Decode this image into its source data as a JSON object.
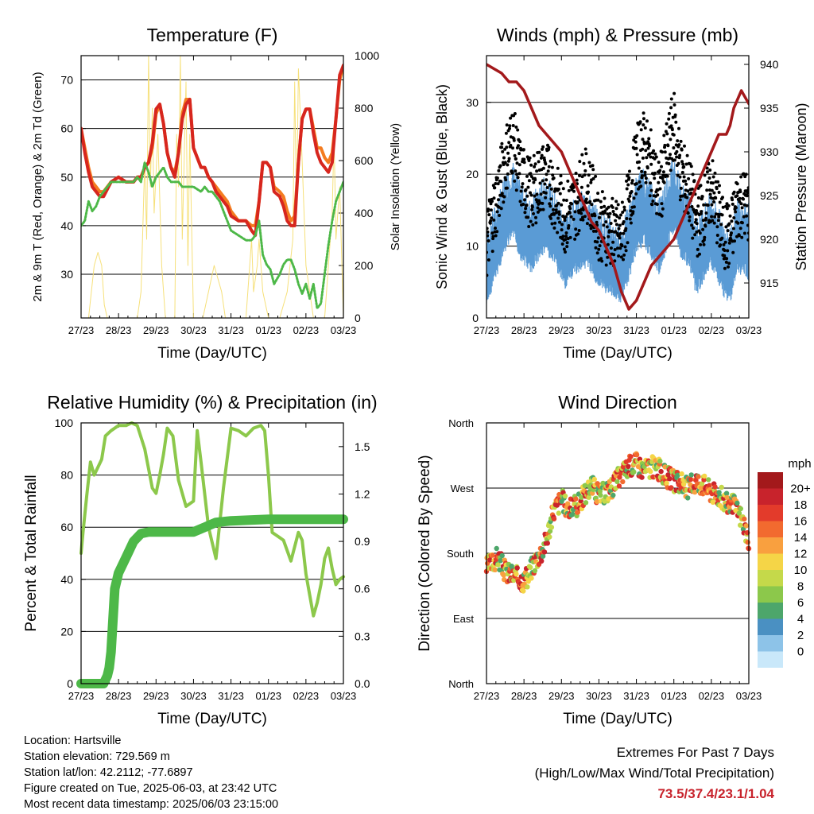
{
  "colors": {
    "red": "#d7261e",
    "orange": "#f47c20",
    "green": "#4db848",
    "yellow": "#f6e07a",
    "blue": "#5a9bd5",
    "black": "#000000",
    "maroon": "#a3191b",
    "rh": "#8cc84b",
    "precip": "#4db848"
  },
  "info": {
    "location": "Location: Hartsville",
    "elevation": "Station elevation: 729.569 m",
    "latlon": "Station lat/lon: 42.2112; -77.6897",
    "created": "Figure created on Tue, 2025-06-03, at 23:42 UTC",
    "recent": "Most recent data timestamp: 2025/06/03 23:15:00"
  },
  "extremes": {
    "title": "Extremes For Past 7 Days",
    "subtitle": "(High/Low/Max Wind/Total Precipitation)",
    "values": "73.5/37.4/23.1/1.04"
  },
  "chart_data": [
    {
      "id": "temp",
      "type": "line",
      "title": "Temperature (F)",
      "xlabel": "Time (Day/UTC)",
      "ylabel": "2m & 9m T (Red, Orange) & 2m Td (Green)",
      "ylabel_right": "Solar Insolation (Yellow)",
      "x_ticks": [
        "27/23",
        "28/23",
        "29/23",
        "30/23",
        "31/23",
        "01/23",
        "02/23",
        "03/23"
      ],
      "xlim": [
        0,
        7
      ],
      "ylim": [
        21,
        75
      ],
      "y_ticks": [
        30,
        40,
        50,
        60,
        70
      ],
      "ylim_right": [
        0,
        1000
      ],
      "y_ticks_right": [
        0,
        200,
        400,
        600,
        800,
        1000
      ],
      "grid": "horizontal",
      "series": [
        {
          "color": "yellow",
          "axis": "right",
          "width": 1,
          "x": [
            0.0,
            0.2,
            0.35,
            0.45,
            0.55,
            0.62,
            0.7,
            0.9,
            1.5,
            1.6,
            1.7,
            1.75,
            1.8,
            1.85,
            1.9,
            1.95,
            2.05,
            2.15,
            2.25,
            2.5,
            2.55,
            2.6,
            2.65,
            2.7,
            2.8,
            2.85,
            2.9,
            3.0,
            3.1,
            3.25,
            3.4,
            3.55,
            3.65,
            3.75,
            3.85,
            3.95,
            4.1,
            4.4,
            4.55,
            4.6,
            4.7,
            4.75,
            4.85,
            5.0,
            5.3,
            5.5,
            5.65,
            5.7,
            5.75,
            5.8,
            5.9,
            6.0,
            6.2,
            6.5,
            6.7,
            6.75,
            6.8,
            6.9,
            7.0
          ],
          "y": [
            0,
            0,
            200,
            250,
            200,
            50,
            0,
            0,
            0,
            100,
            600,
            300,
            1000,
            500,
            800,
            400,
            700,
            200,
            0,
            0,
            700,
            500,
            1000,
            300,
            900,
            200,
            700,
            0,
            0,
            0,
            100,
            200,
            150,
            100,
            0,
            0,
            0,
            0,
            300,
            100,
            200,
            300,
            100,
            0,
            0,
            100,
            300,
            900,
            400,
            950,
            600,
            200,
            0,
            0,
            400,
            700,
            300,
            500,
            0
          ]
        },
        {
          "color": "orange",
          "axis": "left",
          "width": 4,
          "x": [
            0.0,
            0.1,
            0.2,
            0.3,
            0.4,
            0.5,
            0.6,
            0.8,
            1.0,
            1.2,
            1.4,
            1.5,
            1.6,
            1.7,
            1.8,
            1.9,
            2.0,
            2.1,
            2.2,
            2.3,
            2.4,
            2.5,
            2.6,
            2.7,
            2.8,
            2.9,
            3.0,
            3.2,
            3.3,
            3.4,
            3.5,
            3.6,
            3.7,
            3.8,
            3.9,
            4.0,
            4.2,
            4.4,
            4.55,
            4.65,
            4.75,
            4.85,
            4.95,
            5.05,
            5.15,
            5.3,
            5.4,
            5.5,
            5.6,
            5.7,
            5.8,
            5.9,
            6.0,
            6.1,
            6.2,
            6.3,
            6.4,
            6.5,
            6.6,
            6.7,
            6.8,
            6.9,
            7.0
          ],
          "y": [
            60,
            56,
            52,
            49,
            48,
            47,
            47,
            49,
            50,
            49,
            49,
            50,
            50,
            52,
            53,
            56,
            63,
            65,
            61,
            55,
            52,
            51,
            55,
            63,
            66,
            66,
            56,
            52,
            52,
            50,
            49,
            48,
            47,
            46,
            45,
            43,
            41,
            41,
            40,
            40,
            45,
            53,
            53,
            52,
            48,
            47,
            46,
            43,
            41,
            42,
            53,
            62,
            64,
            64,
            60,
            56,
            56,
            54,
            53,
            55,
            62,
            70,
            73
          ]
        },
        {
          "color": "red",
          "axis": "left",
          "width": 4,
          "x": [
            0.0,
            0.1,
            0.2,
            0.3,
            0.4,
            0.5,
            0.6,
            0.8,
            1.0,
            1.2,
            1.4,
            1.5,
            1.6,
            1.7,
            1.8,
            1.9,
            2.0,
            2.1,
            2.2,
            2.3,
            2.4,
            2.5,
            2.6,
            2.7,
            2.8,
            2.9,
            3.0,
            3.2,
            3.3,
            3.4,
            3.5,
            3.6,
            3.7,
            3.8,
            3.9,
            4.0,
            4.2,
            4.4,
            4.55,
            4.65,
            4.75,
            4.85,
            4.95,
            5.05,
            5.15,
            5.3,
            5.4,
            5.5,
            5.6,
            5.7,
            5.8,
            5.9,
            6.0,
            6.1,
            6.2,
            6.3,
            6.4,
            6.5,
            6.6,
            6.7,
            6.8,
            6.9,
            7.0
          ],
          "y": [
            60,
            55,
            51,
            48,
            47,
            46,
            46,
            49,
            50,
            49,
            49,
            50,
            50,
            52,
            53,
            57,
            64,
            65,
            61,
            55,
            52,
            50,
            55,
            62,
            65,
            66,
            56,
            52,
            52,
            50,
            49,
            47,
            46,
            45,
            44,
            42,
            41,
            41,
            39,
            38,
            45,
            53,
            53,
            52,
            47,
            46,
            44,
            41,
            40,
            40,
            53,
            62,
            64,
            64,
            59,
            55,
            53,
            52,
            51,
            53,
            62,
            71,
            73
          ]
        },
        {
          "color": "green",
          "axis": "left",
          "width": 3,
          "dotted": true,
          "x": [
            0.0,
            0.1,
            0.2,
            0.3,
            0.4,
            0.5,
            0.6,
            0.8,
            1.0,
            1.2,
            1.4,
            1.5,
            1.6,
            1.7,
            1.8,
            1.9,
            2.0,
            2.1,
            2.2,
            2.3,
            2.4,
            2.5,
            2.6,
            2.7,
            2.8,
            2.9,
            3.0,
            3.2,
            3.3,
            3.4,
            3.5,
            3.6,
            3.7,
            3.8,
            3.9,
            4.0,
            4.2,
            4.4,
            4.55,
            4.65,
            4.75,
            4.85,
            4.95,
            5.05,
            5.15,
            5.3,
            5.4,
            5.5,
            5.6,
            5.7,
            5.8,
            5.9,
            6.0,
            6.1,
            6.2,
            6.3,
            6.4,
            6.5,
            6.6,
            6.7,
            6.8,
            6.9,
            7.0
          ],
          "y": [
            40,
            41,
            45,
            43,
            44,
            46,
            47,
            49,
            49,
            49,
            49,
            50,
            49,
            53,
            51,
            48,
            50,
            51,
            52,
            50,
            49,
            49,
            49,
            48,
            48,
            48,
            48,
            47,
            48,
            47,
            47,
            46,
            45,
            43,
            41,
            39,
            38,
            37,
            37,
            38,
            41,
            34,
            32,
            31,
            28,
            30,
            32,
            33,
            33,
            31,
            28,
            26,
            28,
            25,
            28,
            23,
            24,
            30,
            36,
            41,
            45,
            47,
            49
          ]
        }
      ]
    },
    {
      "id": "wind",
      "type": "scatter",
      "title": "Winds (mph) & Pressure (mb)",
      "xlabel": "Time (Day/UTC)",
      "ylabel": "Sonic Wind & Gust (Blue, Black)",
      "ylabel_right": "Station Pressure (Maroon)",
      "x_ticks": [
        "27/23",
        "28/23",
        "29/23",
        "30/23",
        "31/23",
        "01/23",
        "02/23",
        "03/23"
      ],
      "xlim": [
        0,
        7
      ],
      "ylim": [
        0,
        36.5
      ],
      "y_ticks": [
        0,
        10,
        20,
        30
      ],
      "ylim_right": [
        911,
        941
      ],
      "y_ticks_right": [
        915,
        920,
        925,
        930,
        935,
        940
      ],
      "grid": "horizontal",
      "wind_mean_x": [
        0.0,
        0.1,
        0.3,
        0.5,
        0.7,
        0.9,
        1.2,
        1.4,
        1.6,
        1.9,
        2.1,
        2.4,
        2.6,
        2.8,
        3.0,
        3.3,
        3.6,
        3.8,
        4.0,
        4.2,
        4.4,
        4.6,
        4.8,
        5.0,
        5.2,
        5.4,
        5.6,
        5.8,
        6.0,
        6.3,
        6.5,
        6.7,
        6.9,
        7.0
      ],
      "wind_mean_y": [
        6,
        8,
        11,
        14,
        16,
        13,
        11,
        13,
        14,
        11,
        9,
        11,
        12,
        11,
        9,
        8,
        7,
        10,
        14,
        15,
        13,
        11,
        14,
        17,
        13,
        12,
        8,
        10,
        12,
        8,
        7,
        11,
        11,
        10
      ],
      "gust_mean_y": [
        10,
        13,
        17,
        22,
        25,
        20,
        17,
        19,
        20,
        16,
        14,
        16,
        19,
        17,
        13,
        12,
        11,
        16,
        22,
        24,
        21,
        17,
        22,
        27,
        20,
        18,
        13,
        15,
        18,
        12,
        11,
        16,
        16,
        15
      ],
      "pressure_x": [
        0.0,
        0.2,
        0.4,
        0.6,
        0.8,
        1.0,
        1.2,
        1.4,
        1.6,
        1.8,
        2.0,
        2.2,
        2.4,
        2.6,
        2.8,
        3.0,
        3.2,
        3.4,
        3.6,
        3.8,
        4.0,
        4.2,
        4.4,
        4.6,
        4.8,
        5.0,
        5.2,
        5.4,
        5.6,
        5.8,
        6.0,
        6.2,
        6.4,
        6.5,
        6.6,
        6.8,
        7.0
      ],
      "pressure_y": [
        940,
        939.5,
        939,
        938,
        938,
        937,
        935,
        933,
        932,
        931,
        930,
        928,
        926,
        924,
        922,
        921,
        919,
        917,
        914,
        912,
        913,
        915,
        917,
        918,
        919,
        920,
        922,
        924,
        926,
        928,
        930,
        932,
        932,
        933,
        935,
        937,
        935.5
      ]
    },
    {
      "id": "rh",
      "type": "line",
      "title": "Relative Humidity (%) & Precipitation (in)",
      "xlabel": "Time (Day/UTC)",
      "ylabel": "Percent & Total Rainfall",
      "x_ticks": [
        "27/23",
        "28/23",
        "29/23",
        "30/23",
        "31/23",
        "01/23",
        "02/23",
        "03/23"
      ],
      "xlim": [
        0,
        7
      ],
      "ylim": [
        0,
        100
      ],
      "y_ticks": [
        0,
        20,
        40,
        60,
        80,
        100
      ],
      "ylim_right": [
        0,
        1.65
      ],
      "y_ticks_right": [
        0.0,
        0.3,
        0.6,
        0.9,
        1.2,
        1.5
      ],
      "grid": "horizontal",
      "series": [
        {
          "name_color": "rh",
          "axis": "left",
          "width": 4,
          "x": [
            0.0,
            0.05,
            0.15,
            0.25,
            0.35,
            0.45,
            0.55,
            0.65,
            0.8,
            1.0,
            1.2,
            1.35,
            1.5,
            1.7,
            1.9,
            2.0,
            2.1,
            2.2,
            2.3,
            2.45,
            2.6,
            2.8,
            3.0,
            3.1,
            3.2,
            3.4,
            3.6,
            3.8,
            4.0,
            4.2,
            4.4,
            4.6,
            4.8,
            4.9,
            5.0,
            5.1,
            5.2,
            5.3,
            5.4,
            5.6,
            5.8,
            5.9,
            6.0,
            6.1,
            6.2,
            6.3,
            6.4,
            6.5,
            6.6,
            6.7,
            6.8,
            6.9,
            7.0
          ],
          "y": [
            50,
            58,
            72,
            85,
            80,
            83,
            86,
            95,
            97,
            99,
            99,
            100,
            99,
            90,
            75,
            73,
            80,
            88,
            98,
            95,
            78,
            68,
            70,
            97,
            85,
            60,
            48,
            75,
            98,
            97,
            95,
            98,
            99,
            97,
            80,
            58,
            57,
            56,
            55,
            47,
            58,
            55,
            42,
            34,
            26,
            31,
            38,
            48,
            52,
            44,
            38,
            40,
            41
          ]
        },
        {
          "name_color": "precip",
          "axis": "right",
          "width": 12,
          "x": [
            0.0,
            0.4,
            0.6,
            0.7,
            0.75,
            0.8,
            0.9,
            1.0,
            1.2,
            1.4,
            1.6,
            1.8,
            2.0,
            2.5,
            3.0,
            3.2,
            3.4,
            3.6,
            4.0,
            5.0,
            6.0,
            7.0
          ],
          "y": [
            0.0,
            0.0,
            0.0,
            0.05,
            0.1,
            0.2,
            0.6,
            0.7,
            0.8,
            0.9,
            0.95,
            0.96,
            0.96,
            0.96,
            0.96,
            0.98,
            1.0,
            1.02,
            1.03,
            1.04,
            1.04,
            1.04
          ]
        }
      ]
    },
    {
      "id": "wdir",
      "type": "scatter",
      "title": "Wind Direction",
      "xlabel": "Time (Day/UTC)",
      "ylabel": "Direction (Colored By Speed)",
      "x_ticks": [
        "27/23",
        "28/23",
        "29/23",
        "30/23",
        "31/23",
        "01/23",
        "02/23",
        "03/23"
      ],
      "y_ticks": [
        "North",
        "East",
        "South",
        "West",
        "North"
      ],
      "ylim": [
        0,
        360
      ],
      "grid": "horizontal",
      "direction_x": [
        0.0,
        0.1,
        0.2,
        0.3,
        0.5,
        0.7,
        0.9,
        1.0,
        1.1,
        1.2,
        1.3,
        1.4,
        1.5,
        1.6,
        1.8,
        2.0,
        2.2,
        2.4,
        2.6,
        2.8,
        3.0,
        3.2,
        3.4,
        3.6,
        3.8,
        4.0,
        4.2,
        4.4,
        4.6,
        4.8,
        5.0,
        5.2,
        5.4,
        5.6,
        5.8,
        6.0,
        6.2,
        6.4,
        6.6,
        6.8,
        6.9,
        7.0
      ],
      "direction_y": [
        160,
        165,
        170,
        175,
        155,
        150,
        145,
        142,
        145,
        160,
        170,
        178,
        185,
        200,
        240,
        255,
        240,
        245,
        260,
        275,
        260,
        265,
        275,
        290,
        300,
        305,
        295,
        300,
        295,
        285,
        280,
        275,
        270,
        280,
        275,
        265,
        260,
        250,
        245,
        230,
        215,
        180
      ],
      "legend_title": "mph",
      "legend_labels": [
        "20+",
        "18",
        "16",
        "14",
        "12",
        "10",
        "8",
        "6",
        "4",
        "2",
        "0"
      ],
      "legend_colors": [
        "#a3191b",
        "#c8232c",
        "#e33b2b",
        "#f26a2f",
        "#f9a03f",
        "#f5d547",
        "#c5d94a",
        "#8cc84b",
        "#4da66b",
        "#4a90c2",
        "#8dc3e8",
        "#c9e8fa"
      ]
    }
  ]
}
